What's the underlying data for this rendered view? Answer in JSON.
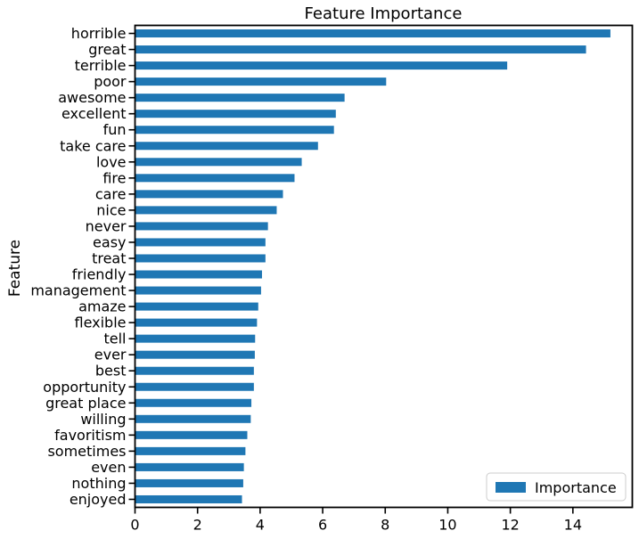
{
  "chart_data": {
    "type": "bar",
    "orientation": "horizontal",
    "title": "Feature Importance",
    "xlabel": "",
    "ylabel": "Feature",
    "xlim": [
      0,
      15.9
    ],
    "xticks": [
      "0",
      "2",
      "4",
      "6",
      "8",
      "10",
      "12",
      "14"
    ],
    "grid": false,
    "legend_position": "lower-right",
    "categories": [
      "horrible",
      "great",
      "terrible",
      "poor",
      "awesome",
      "excellent",
      "fun",
      "take care",
      "love",
      "fire",
      "care",
      "nice",
      "never",
      "easy",
      "treat",
      "friendly",
      "management",
      "amaze",
      "flexible",
      "tell",
      "ever",
      "best",
      "opportunity",
      "great place",
      "willing",
      "favoritism",
      "sometimes",
      "even",
      "nothing",
      "enjoyed"
    ],
    "series": [
      {
        "name": "Importance",
        "color": "#1f77b4",
        "values": [
          15.2,
          14.42,
          11.9,
          8.03,
          6.7,
          6.42,
          6.36,
          5.85,
          5.33,
          5.1,
          4.73,
          4.53,
          4.25,
          4.17,
          4.17,
          4.06,
          4.03,
          3.94,
          3.9,
          3.84,
          3.83,
          3.8,
          3.8,
          3.72,
          3.7,
          3.59,
          3.53,
          3.48,
          3.46,
          3.42
        ]
      }
    ]
  }
}
